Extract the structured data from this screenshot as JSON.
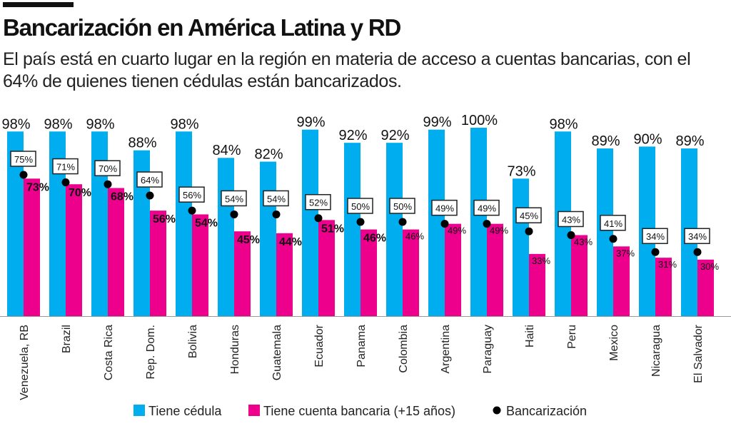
{
  "title": "Bancarización en América Latina y RD",
  "subtitle": "El país está en cuarto lugar en la región en materia de acceso a cuentas bancarias, con el 64% de quienes tienen cédulas están bancarizados.",
  "chart_data": {
    "type": "bar",
    "title": "Bancarización en América Latina y RD",
    "categories": [
      "Venezuela, RB",
      "Brazil",
      "Costa Rica",
      "Rep. Dom.",
      "Bolivia",
      "Honduras",
      "Guatemala",
      "Ecuador",
      "Panama",
      "Colombia",
      "Argentina",
      "Paraguay",
      "Haiti",
      "Peru",
      "Mexico",
      "Nicaragua",
      "El Salvador"
    ],
    "series": [
      {
        "name": "Tiene cédula",
        "kind": "bar",
        "color": "#00aeef",
        "values": [
          98,
          98,
          98,
          88,
          98,
          84,
          82,
          99,
          92,
          92,
          99,
          100,
          73,
          98,
          89,
          90,
          89
        ]
      },
      {
        "name": "Tiene cuenta bancaria (+15 años)",
        "kind": "bar",
        "color": "#ec008c",
        "values": [
          73,
          70,
          68,
          56,
          54,
          45,
          44,
          51,
          46,
          46,
          49,
          49,
          33,
          43,
          37,
          31,
          30
        ]
      },
      {
        "name": "Bancarización",
        "kind": "dot",
        "color": "#000000",
        "values": [
          75,
          71,
          70,
          64,
          56,
          54,
          54,
          52,
          50,
          50,
          49,
          49,
          45,
          43,
          41,
          34,
          34
        ]
      }
    ],
    "ylim": [
      0,
      100
    ],
    "grid": false,
    "legend": "bottom"
  }
}
